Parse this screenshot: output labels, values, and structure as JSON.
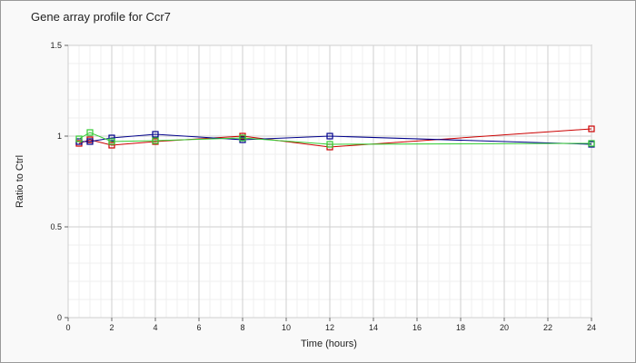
{
  "chart_data": {
    "type": "line",
    "title": "Gene array profile for Ccr7",
    "xlabel": "Time (hours)",
    "ylabel": "Ratio to Ctrl",
    "xlim": [
      0,
      24
    ],
    "ylim": [
      0,
      1.5
    ],
    "x_ticks": [
      "0",
      "2",
      "4",
      "6",
      "8",
      "10",
      "12",
      "14",
      "16",
      "18",
      "20",
      "22",
      "24"
    ],
    "y_ticks": [
      "0",
      "0.5",
      "1",
      "1.5"
    ],
    "grid": true,
    "legend": "none",
    "series": [
      {
        "color": "#cc0000",
        "marker": "square",
        "x": [
          0.5,
          1,
          2,
          4,
          8,
          12,
          24
        ],
        "y": [
          0.96,
          0.98,
          0.95,
          0.97,
          1.0,
          0.94,
          1.04
        ]
      },
      {
        "color": "#00008b",
        "marker": "square",
        "x": [
          0.5,
          1,
          2,
          4,
          8,
          12,
          24
        ],
        "y": [
          0.97,
          0.97,
          0.99,
          1.01,
          0.98,
          1.0,
          0.955
        ]
      },
      {
        "color": "#33cc33",
        "marker": "square",
        "x": [
          0.5,
          1,
          2,
          4,
          8,
          12,
          24
        ],
        "y": [
          0.985,
          1.02,
          0.97,
          0.975,
          0.99,
          0.955,
          0.96
        ]
      }
    ]
  }
}
